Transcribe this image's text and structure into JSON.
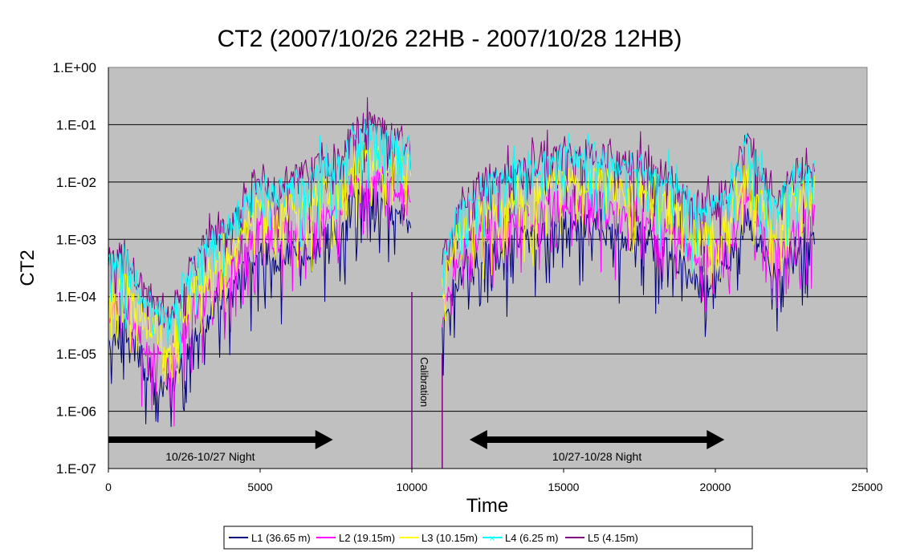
{
  "chart_data": {
    "type": "line",
    "title": "CT2 (2007/10/26 22HB - 2007/10/28 12HB)",
    "xlabel": "Time",
    "ylabel": "CT2",
    "xlim": [
      0,
      25000
    ],
    "ylim": [
      1e-07,
      1
    ],
    "yscale": "log",
    "grid": "horizontal",
    "legend_position": "bottom",
    "plot_background": "#c0c0c0",
    "x_ticks": [
      "0",
      "5000",
      "10000",
      "15000",
      "20000",
      "25000"
    ],
    "y_ticks": [
      "1.E+00",
      "1.E-01",
      "1.E-02",
      "1.E-03",
      "1.E-04",
      "1.E-05",
      "1.E-06",
      "1.E-07"
    ],
    "x": [
      0,
      500,
      1000,
      1500,
      2000,
      2500,
      3000,
      3500,
      4000,
      4500,
      5000,
      5500,
      6000,
      6500,
      7000,
      7500,
      8000,
      8500,
      9000,
      9500,
      10000,
      11000,
      11500,
      12000,
      12500,
      13000,
      13500,
      14000,
      14500,
      15000,
      15500,
      16000,
      16500,
      17000,
      17500,
      18000,
      18500,
      19000,
      19500,
      20000,
      20500,
      21000,
      21500,
      22000,
      22500,
      23000,
      23300
    ],
    "series": [
      {
        "name": "L1 (36.65 m)",
        "color": "#000080",
        "values": [
          2e-05,
          3e-05,
          1e-05,
          4e-06,
          2e-06,
          1e-05,
          3e-05,
          6e-05,
          0.0001,
          0.0003,
          0.0006,
          0.0004,
          0.0006,
          0.0006,
          0.0012,
          0.001,
          0.004,
          0.005,
          0.004,
          0.003,
          0.0024,
          2e-05,
          0.0002,
          0.0004,
          0.0006,
          0.0006,
          0.001,
          0.001,
          0.0015,
          0.002,
          0.0015,
          0.002,
          0.0012,
          0.001,
          0.0012,
          0.0007,
          0.0006,
          0.0003,
          0.0002,
          0.00024,
          0.0004,
          0.003,
          0.0007,
          0.0002,
          0.0006,
          0.001,
          0.0012
        ]
      },
      {
        "name": "L2 (19.15m)",
        "color": "#ff00ff",
        "values": [
          5e-05,
          8e-05,
          2.4e-05,
          9e-06,
          5e-06,
          2.4e-05,
          8e-05,
          0.00015,
          0.00024,
          0.0008,
          0.0015,
          0.0009,
          0.0015,
          0.0015,
          0.003,
          0.0024,
          0.009,
          0.012,
          0.009,
          0.008,
          0.006,
          5e-05,
          0.0005,
          0.0009,
          0.0015,
          0.0015,
          0.0024,
          0.0024,
          0.004,
          0.005,
          0.004,
          0.005,
          0.003,
          0.0024,
          0.003,
          0.0018,
          0.0015,
          0.0008,
          0.0005,
          0.0006,
          0.0009,
          0.008,
          0.0018,
          0.0005,
          0.0015,
          0.0024,
          0.003
        ]
      },
      {
        "name": "L3 (10.15m)",
        "color": "#ffff00",
        "values": [
          0.00012,
          0.0002,
          6e-05,
          2.4e-05,
          1.2e-05,
          6e-05,
          0.0002,
          0.0004,
          0.0006,
          0.002,
          0.004,
          0.0024,
          0.004,
          0.004,
          0.008,
          0.006,
          0.024,
          0.03,
          0.024,
          0.02,
          0.016,
          0.00012,
          0.0012,
          0.0024,
          0.004,
          0.004,
          0.006,
          0.006,
          0.01,
          0.012,
          0.01,
          0.012,
          0.008,
          0.006,
          0.008,
          0.005,
          0.004,
          0.002,
          0.0012,
          0.0016,
          0.0024,
          0.02,
          0.005,
          0.0012,
          0.004,
          0.006,
          0.008
        ]
      },
      {
        "name": "L4 (6.25 m)",
        "color": "#00ffff",
        "marker": "x",
        "values": [
          0.0003,
          0.0005,
          0.00016,
          6e-05,
          3e-05,
          0.00016,
          0.0005,
          0.001,
          0.0016,
          0.005,
          0.01,
          0.006,
          0.01,
          0.01,
          0.02,
          0.016,
          0.06,
          0.08,
          0.06,
          0.05,
          0.04,
          0.0003,
          0.003,
          0.006,
          0.01,
          0.01,
          0.016,
          0.016,
          0.025,
          0.03,
          0.025,
          0.03,
          0.02,
          0.016,
          0.02,
          0.012,
          0.01,
          0.005,
          0.003,
          0.004,
          0.006,
          0.05,
          0.012,
          0.003,
          0.01,
          0.016,
          0.02
        ]
      },
      {
        "name": "L5 (4.15m)",
        "color": "#800080",
        "values": [
          0.0004,
          0.0006,
          0.0002,
          8e-05,
          4e-05,
          0.0002,
          0.0006,
          0.0013,
          0.002,
          0.006,
          0.013,
          0.008,
          0.013,
          0.013,
          0.026,
          0.02,
          0.08,
          0.1,
          0.08,
          0.06,
          0.05,
          0.0004,
          0.004,
          0.008,
          0.013,
          0.013,
          0.02,
          0.02,
          0.03,
          0.04,
          0.03,
          0.04,
          0.026,
          0.02,
          0.026,
          0.016,
          0.013,
          0.006,
          0.004,
          0.005,
          0.008,
          0.06,
          0.016,
          0.004,
          0.013,
          0.02,
          0.026
        ]
      }
    ],
    "annotations": {
      "calibration": {
        "label": "Calibration",
        "x_start": 10000,
        "x_end": 11000
      },
      "night1": {
        "label": "10/26-10/27 Night",
        "x_start": 0,
        "x_end": 7400,
        "arrow": "right"
      },
      "night2": {
        "label": "10/27-10/28 Night",
        "x_start": 11900,
        "x_end": 20300,
        "arrow": "both"
      }
    }
  }
}
